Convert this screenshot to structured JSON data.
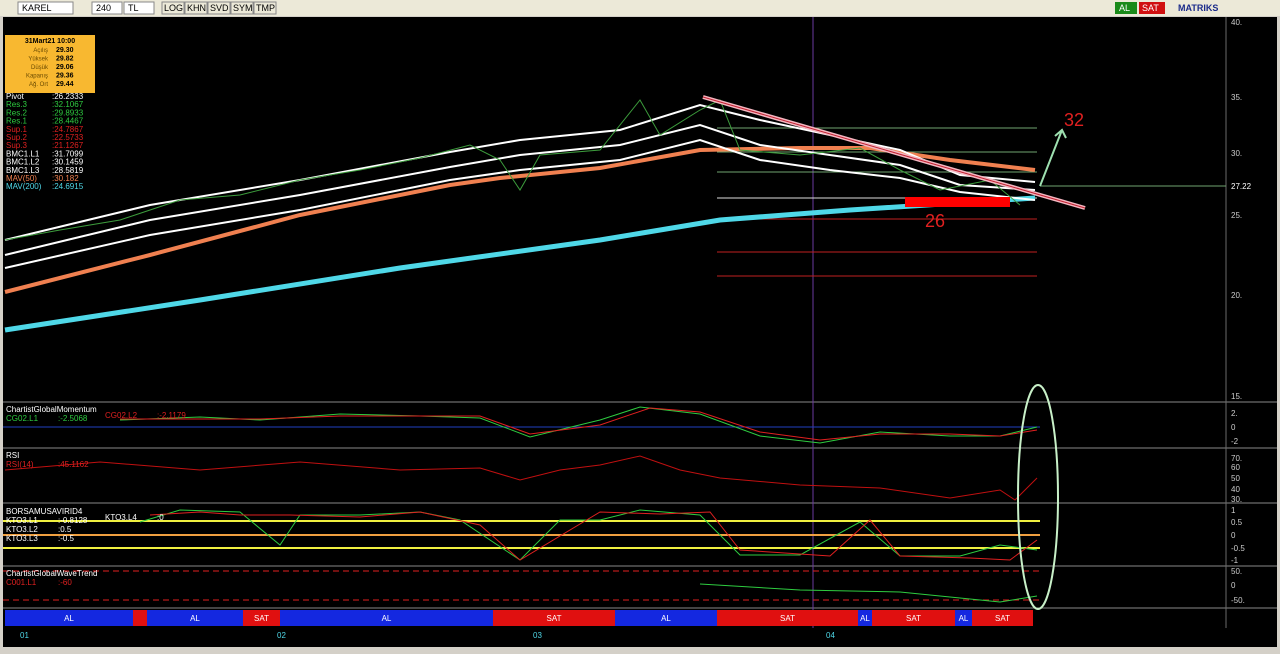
{
  "toolbar": {
    "symbol": "KAREL",
    "period": "240",
    "currency": "TL",
    "buttons": [
      "LOG",
      "KHN",
      "SVD",
      "SYM",
      "TMP"
    ],
    "buy": "AL",
    "sell": "SAT",
    "brand": "MATRIKS"
  },
  "info_box": {
    "date": "31Mart21 10:00",
    "rows": [
      [
        "Açılış",
        "29.30"
      ],
      [
        "Yüksek",
        "29.82"
      ],
      [
        "Düşük",
        "29.06"
      ],
      [
        "Kapanış",
        "29.36"
      ],
      [
        "Ağ. Ort",
        "29.44"
      ]
    ]
  },
  "legend": [
    [
      "Pivot",
      ":26.2333"
    ],
    [
      "Res.3",
      ":32.1067"
    ],
    [
      "Res.2",
      ":29.8933"
    ],
    [
      "Res.1",
      ":28.4467"
    ],
    [
      "Sup.1",
      ":24.7867"
    ],
    [
      "Sup.2",
      ":22.5733"
    ],
    [
      "Sup.3",
      ":21.1267"
    ],
    [
      "BMC1.L1",
      ":31.7099"
    ],
    [
      "BMC1.L2",
      ":30.1459"
    ],
    [
      "BMC1.L3",
      ":28.5819"
    ],
    [
      "MAV(50)",
      ":30.182"
    ],
    [
      "MAV(200)",
      ":24.6915"
    ]
  ],
  "price_axis": [
    "40.",
    "35.",
    "30.",
    "27.22",
    "25.",
    "20.",
    "15."
  ],
  "annotations": [
    "32",
    "26"
  ],
  "panels": [
    {
      "title": "ChartistGlobalMomentum",
      "labels": [
        [
          "CG02.L1",
          ":-2.5068"
        ],
        [
          "CG02.L2",
          ":-2.1179"
        ]
      ],
      "axis": [
        "2.",
        "0",
        "-2"
      ]
    },
    {
      "title": "RSI",
      "labels": [
        [
          "RSI(14)",
          ":45.1162"
        ]
      ],
      "axis": [
        "70.",
        "60",
        "50",
        "40",
        "30."
      ]
    },
    {
      "title": "BORSAMUSAVIRID4",
      "labels": [
        [
          "KTO3.L1",
          ":-0.8128"
        ],
        [
          "KTO3.L2",
          ":0.5"
        ],
        [
          "KTO3.L3",
          ":-0.5"
        ],
        [
          "KTO3.L4",
          ":0"
        ]
      ],
      "axis": [
        "1",
        "0.5",
        "0",
        "-0.5",
        "-1"
      ]
    },
    {
      "title": "ChartistGlobalWaveTrend",
      "labels": [
        [
          "C001.L1",
          ":-60"
        ]
      ],
      "axis": [
        "50.",
        "0",
        "-50."
      ]
    }
  ],
  "signals": [
    "AL",
    "AL",
    "SAT",
    "AL",
    "SAT",
    "AL",
    "SAT",
    "AL",
    "SAT",
    "AL",
    "SAT"
  ],
  "dates": [
    "01",
    "02",
    "03",
    "04"
  ]
}
